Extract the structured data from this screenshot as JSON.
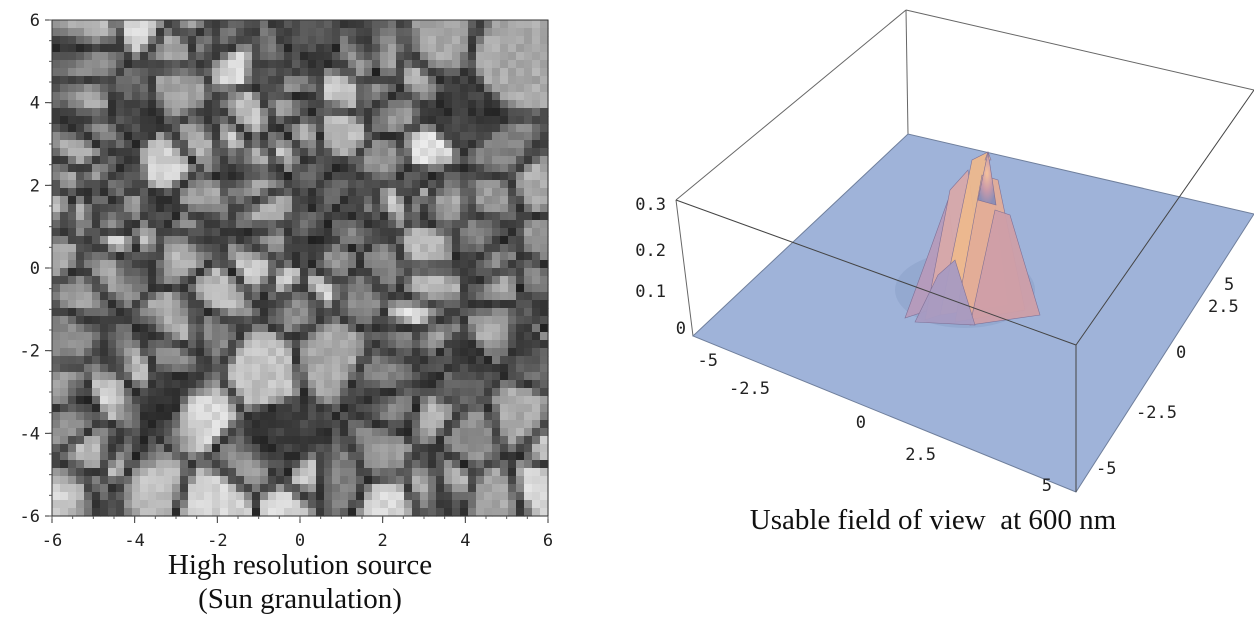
{
  "chart_data": [
    {
      "type": "heatmap",
      "colormap": "grayscale",
      "caption_line1": "High resolution source",
      "caption_line2": "(Sun granulation)",
      "xlim": [
        -6,
        6
      ],
      "ylim": [
        -6,
        6
      ],
      "x_ticks": [
        "-6",
        "-4",
        "-2",
        "0",
        "2",
        "4",
        "6"
      ],
      "y_ticks": [
        "6",
        "4",
        "2",
        "0",
        "-2",
        "-4",
        "-6"
      ],
      "grid": false
    },
    {
      "type": "surface3d",
      "caption": "Usable field of view  at 600 nm",
      "surface_color": "#9fb3d9",
      "peak_color": "#f0b487",
      "zlim": [
        0,
        0.3
      ],
      "peak_value": 0.3,
      "peak_location": [
        0,
        0
      ],
      "z_ticks": [
        "0.3",
        "0.2",
        "0.1",
        "0"
      ],
      "x_ticks": [
        "-5",
        "-2.5",
        "0",
        "2.5",
        "5"
      ],
      "y_ticks": [
        "5",
        "2.5",
        "0",
        "-2.5",
        "-5"
      ]
    }
  ]
}
